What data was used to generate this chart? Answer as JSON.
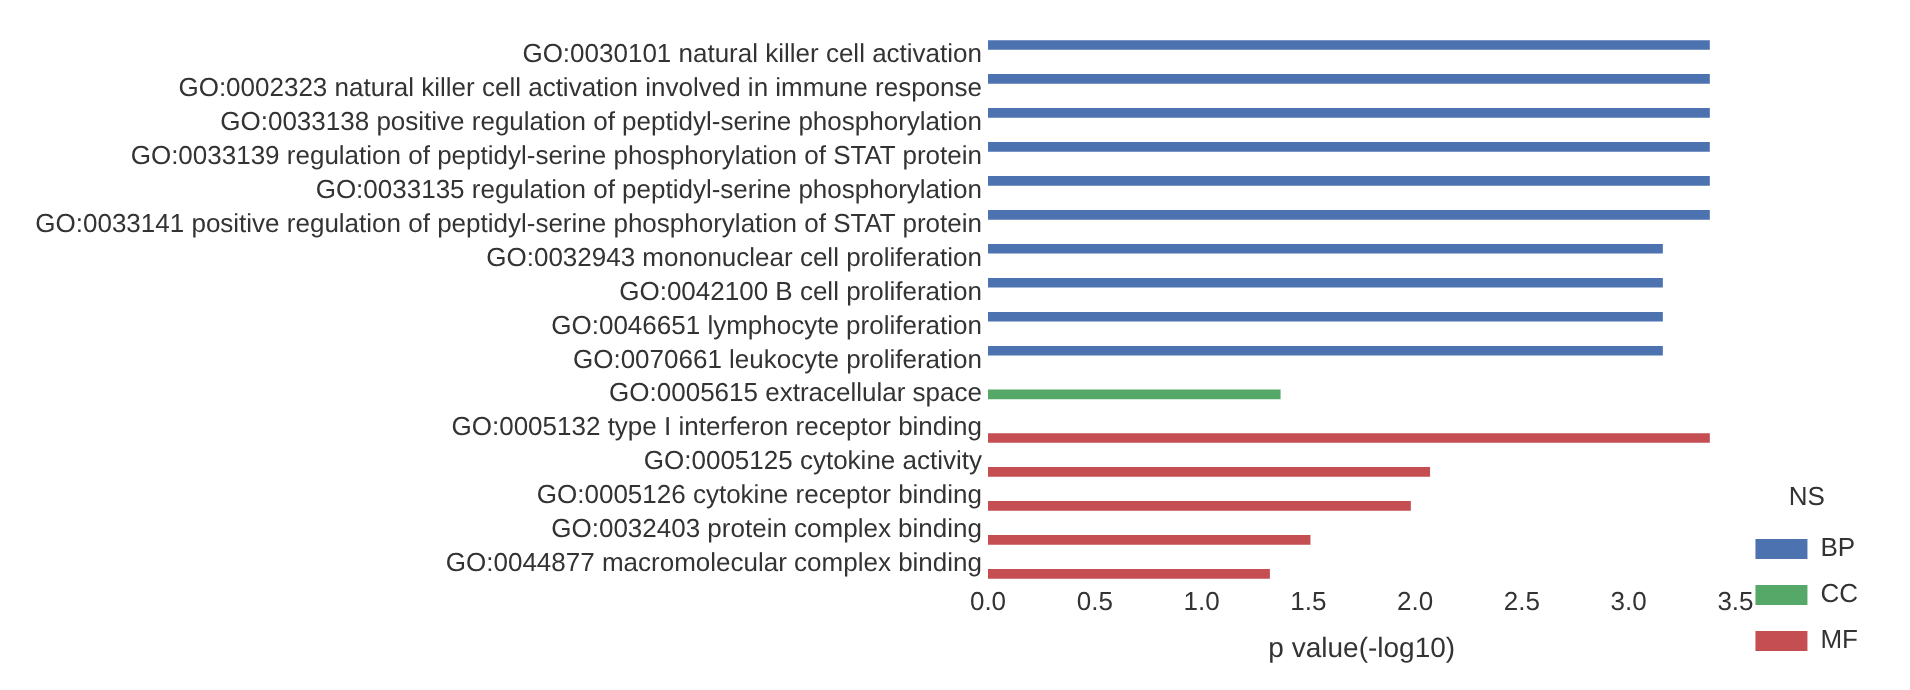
{
  "chart_data": {
    "type": "bar",
    "orientation": "horizontal",
    "xlabel": "p value(-log10)",
    "legend_title": "NS",
    "legend": "bottom right",
    "grid": false,
    "categories": [
      "GO:0030101 natural killer cell activation",
      "GO:0002323 natural killer cell activation involved in immune response",
      "GO:0033138 positive regulation of peptidyl-serine phosphorylation",
      "GO:0033139 regulation of peptidyl-serine phosphorylation of STAT protein",
      "GO:0033135 regulation of peptidyl-serine phosphorylation",
      "GO:0033141 positive regulation of peptidyl-serine phosphorylation of STAT protein",
      "GO:0032943 mononuclear cell proliferation",
      "GO:0042100 B cell proliferation",
      "GO:0046651 lymphocyte proliferation",
      "GO:0070661 leukocyte proliferation",
      "GO:0005615 extracellular space",
      "GO:0005132 type I interferon receptor binding",
      "GO:0005125 cytokine activity",
      "GO:0005126 cytokine receptor binding",
      "GO:0032403 protein complex binding",
      "GO:0044877 macromolecular complex binding"
    ],
    "series": [
      {
        "name": "BP",
        "color": "#4c72b0",
        "values": [
          3.38,
          3.38,
          3.38,
          3.38,
          3.38,
          3.38,
          3.16,
          3.16,
          3.16,
          3.16,
          null,
          null,
          null,
          null,
          null,
          null
        ]
      },
      {
        "name": "CC",
        "color": "#55a868",
        "values": [
          null,
          null,
          null,
          null,
          null,
          null,
          null,
          null,
          null,
          null,
          1.37,
          null,
          null,
          null,
          null,
          null
        ]
      },
      {
        "name": "MF",
        "color": "#c44e52",
        "values": [
          null,
          null,
          null,
          null,
          null,
          null,
          null,
          null,
          null,
          null,
          null,
          3.38,
          2.07,
          1.98,
          1.51,
          1.32
        ]
      }
    ],
    "xlim": [
      0,
      3.5
    ],
    "xticks": [
      {
        "value": 0,
        "label": "0.0"
      },
      0.5,
      {
        "value": 1,
        "label": "1.0"
      },
      1.5,
      {
        "value": 2,
        "label": "2.0"
      },
      2.5,
      {
        "value": 3,
        "label": "3.0"
      },
      3.5
    ]
  }
}
